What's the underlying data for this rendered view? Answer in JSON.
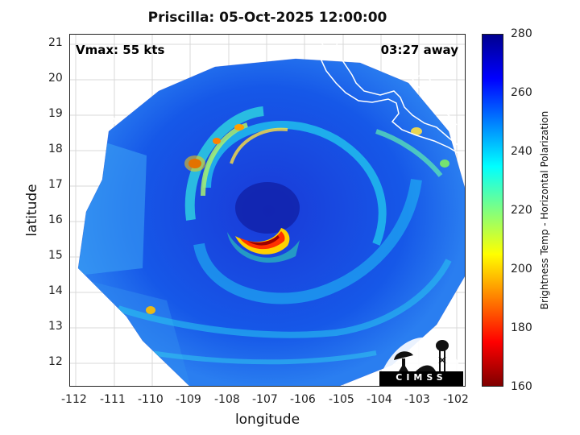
{
  "title": "Priscilla: 05-Oct-2025 12:00:00",
  "vmax_label": "Vmax: 55 kts",
  "away_label": "03:27 away",
  "xlabel": "longitude",
  "ylabel": "latitude",
  "x_ticks": [
    "-112",
    "-111",
    "-110",
    "-109",
    "-108",
    "-107",
    "-106",
    "-105",
    "-104",
    "-103",
    "-102"
  ],
  "y_ticks": [
    "21",
    "20",
    "19",
    "18",
    "17",
    "16",
    "15",
    "14",
    "13",
    "12"
  ],
  "colorbar": {
    "label": "Brightness Temp - Horizontal Polarization",
    "ticks": [
      "280",
      "260",
      "240",
      "220",
      "200",
      "180",
      "160"
    ],
    "range": [
      160,
      280
    ],
    "colormap": [
      "#7f0000",
      "#ff0000",
      "#ff8000",
      "#ffff00",
      "#80ff80",
      "#00ffff",
      "#0080ff",
      "#0000ff",
      "#00008f"
    ]
  },
  "logo": {
    "text": "CIMSS",
    "icon": "cimss-logo-icon"
  },
  "map_extent": {
    "lon": [
      -112.2,
      -101.8
    ],
    "lat": [
      11.3,
      21.3
    ]
  }
}
